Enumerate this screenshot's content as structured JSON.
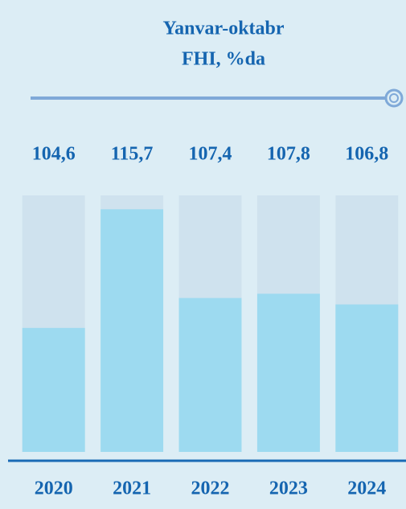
{
  "chart_data": {
    "type": "bar",
    "title": "Yanvar-oktabr",
    "subtitle": "FHI, %da",
    "categories": [
      "2020",
      "2021",
      "2022",
      "2023",
      "2024"
    ],
    "values": [
      104.6,
      115.7,
      107.4,
      107.8,
      106.8
    ],
    "value_labels": [
      "104,6",
      "115,7",
      "107,4",
      "107,8",
      "106,8"
    ],
    "color": "#9ddaf0",
    "ylim": [
      93,
      117
    ]
  }
}
